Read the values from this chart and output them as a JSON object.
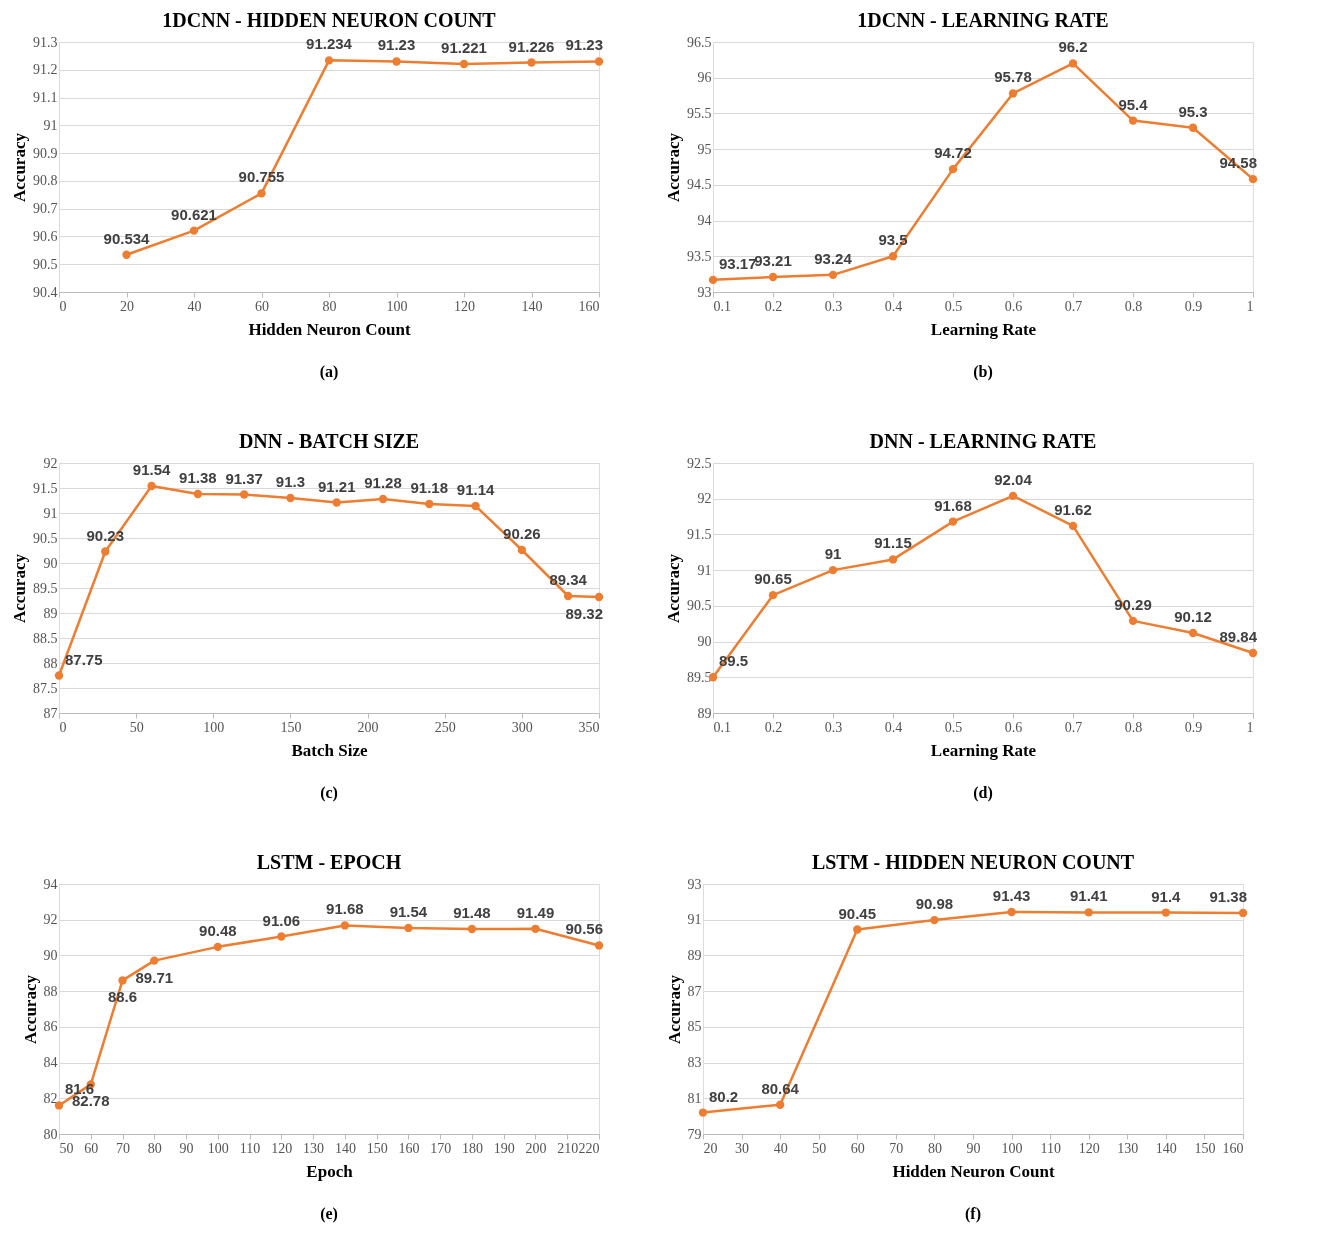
{
  "chart_data": [
    {
      "type": "line",
      "title": "1DCNN - HIDDEN NEURON COUNT",
      "xlabel": "Hidden Neuron Count",
      "ylabel": "Accuracy",
      "annotations": [
        "(a)"
      ],
      "x": [
        20,
        40,
        60,
        80,
        100,
        120,
        140,
        160
      ],
      "series": [
        {
          "color": "#ed7d31",
          "values": [
            90.534,
            90.621,
            90.755,
            91.234,
            91.23,
            91.221,
            91.226,
            91.23
          ]
        }
      ],
      "xlim": [
        0,
        160
      ],
      "xticks": [
        0,
        20,
        40,
        60,
        80,
        100,
        120,
        140,
        160
      ],
      "ylim": [
        90.4,
        91.3
      ],
      "yticks": [
        90.4,
        90.5,
        90.6,
        90.7,
        90.8,
        90.9,
        91,
        91.1,
        91.2,
        91.3
      ],
      "grid": "y",
      "marker": "circle",
      "data_labels": true
    },
    {
      "type": "line",
      "title": "1DCNN - LEARNING RATE",
      "xlabel": "Learning Rate",
      "ylabel": "Accuracy",
      "annotations": [
        "(b)"
      ],
      "x": [
        0.1,
        0.2,
        0.3,
        0.4,
        0.5,
        0.6,
        0.7,
        0.8,
        0.9,
        1
      ],
      "series": [
        {
          "color": "#ed7d31",
          "values": [
            93.17,
            93.21,
            93.24,
            93.5,
            94.72,
            95.78,
            96.2,
            95.4,
            95.3,
            94.58
          ]
        }
      ],
      "xlim": [
        0.1,
        1
      ],
      "xticks": [
        0.1,
        0.2,
        0.3,
        0.4,
        0.5,
        0.6,
        0.7,
        0.8,
        0.9,
        1
      ],
      "ylim": [
        93,
        96.5
      ],
      "yticks": [
        93,
        93.5,
        94,
        94.5,
        95,
        95.5,
        96,
        96.5
      ],
      "grid": "y",
      "marker": "circle",
      "data_labels": true
    },
    {
      "type": "line",
      "title": "DNN - BATCH SIZE",
      "xlabel": "Batch Size",
      "ylabel": "Accuracy",
      "annotations": [
        "(c)"
      ],
      "x": [
        0,
        30,
        60,
        90,
        120,
        150,
        180,
        210,
        240,
        270,
        300,
        330,
        350
      ],
      "series": [
        {
          "color": "#ed7d31",
          "values": [
            87.75,
            90.23,
            91.54,
            91.38,
            91.37,
            91.3,
            91.21,
            91.28,
            91.18,
            91.14,
            90.26,
            89.34,
            89.32
          ]
        }
      ],
      "xlim": [
        0,
        350
      ],
      "xticks": [
        0,
        50,
        100,
        150,
        200,
        250,
        300,
        350
      ],
      "ylim": [
        87,
        92
      ],
      "yticks": [
        87,
        87.5,
        88,
        88.5,
        89,
        89.5,
        90,
        90.5,
        91,
        91.5,
        92
      ],
      "grid": "y",
      "marker": "circle",
      "data_labels": true
    },
    {
      "type": "line",
      "title": "DNN - LEARNING RATE",
      "xlabel": "Learning Rate",
      "ylabel": "Accuracy",
      "annotations": [
        "(d)"
      ],
      "x": [
        0.1,
        0.2,
        0.3,
        0.4,
        0.5,
        0.6,
        0.7,
        0.8,
        0.9,
        1
      ],
      "series": [
        {
          "color": "#ed7d31",
          "values": [
            89.5,
            90.65,
            91,
            91.15,
            91.68,
            92.04,
            91.62,
            90.29,
            90.12,
            89.84
          ]
        }
      ],
      "xlim": [
        0.1,
        1
      ],
      "xticks": [
        0.1,
        0.2,
        0.3,
        0.4,
        0.5,
        0.6,
        0.7,
        0.8,
        0.9,
        1
      ],
      "ylim": [
        89,
        92.5
      ],
      "yticks": [
        89,
        89.5,
        90,
        90.5,
        91,
        91.5,
        92,
        92.5
      ],
      "grid": "y",
      "marker": "circle",
      "data_labels": true
    },
    {
      "type": "line",
      "title": "LSTM - EPOCH",
      "xlabel": "Epoch",
      "ylabel": "Accuracy",
      "annotations": [
        "(e)"
      ],
      "x": [
        50,
        60,
        70,
        80,
        100,
        120,
        140,
        160,
        180,
        200,
        220
      ],
      "series": [
        {
          "color": "#ed7d31",
          "values": [
            81.6,
            82.78,
            88.6,
            89.71,
            90.48,
            91.06,
            91.68,
            91.54,
            91.48,
            91.49,
            90.56
          ]
        }
      ],
      "xlim": [
        50,
        220
      ],
      "xticks": [
        50,
        60,
        70,
        80,
        90,
        100,
        110,
        120,
        130,
        140,
        150,
        160,
        170,
        180,
        190,
        200,
        210,
        220
      ],
      "ylim": [
        80,
        94
      ],
      "yticks": [
        80,
        82,
        84,
        86,
        88,
        90,
        92,
        94
      ],
      "grid": "y",
      "marker": "circle",
      "data_labels": true
    },
    {
      "type": "line",
      "title": "LSTM - HIDDEN NEURON COUNT",
      "xlabel": "Hidden Neuron Count",
      "ylabel": "Accuracy",
      "annotations": [
        "(f)"
      ],
      "x": [
        20,
        40,
        60,
        80,
        100,
        120,
        140,
        160
      ],
      "series": [
        {
          "color": "#ed7d31",
          "values": [
            80.2,
            80.64,
            90.45,
            90.98,
            91.43,
            91.41,
            91.4,
            91.38
          ]
        }
      ],
      "xlim": [
        20,
        160
      ],
      "xticks": [
        20,
        30,
        40,
        50,
        60,
        70,
        80,
        90,
        100,
        110,
        120,
        130,
        140,
        150,
        160
      ],
      "ylim": [
        79,
        93
      ],
      "yticks": [
        79,
        81,
        83,
        85,
        87,
        89,
        91,
        93
      ],
      "grid": "y",
      "marker": "circle",
      "data_labels": true
    }
  ]
}
